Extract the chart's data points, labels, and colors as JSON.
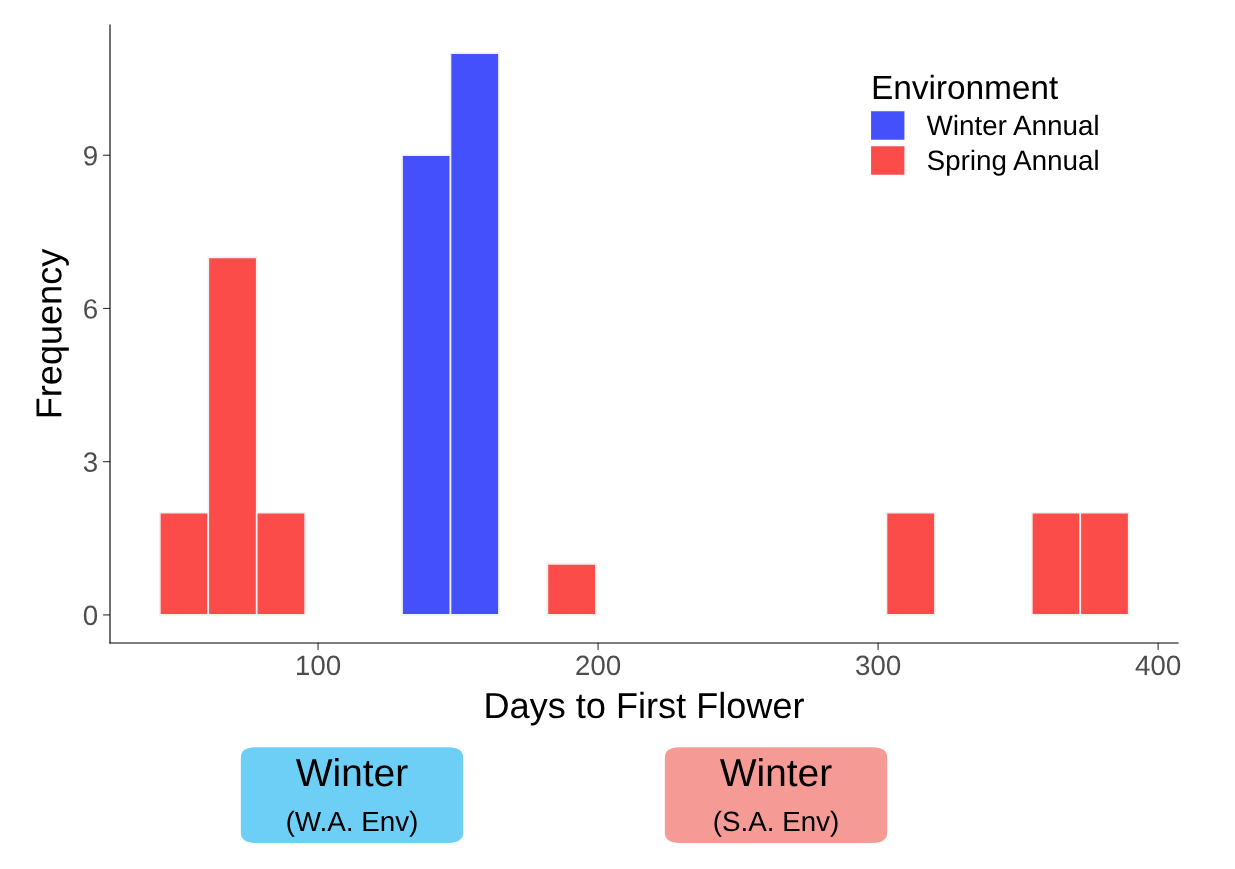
{
  "chart_data": {
    "type": "histogram",
    "xlabel": "Days to First Flower",
    "ylabel": "Frequency",
    "legend_title": "Environment",
    "bins": [
      43.5,
      60.8,
      78.1,
      95.4,
      112.7,
      130.0,
      147.3,
      164.6,
      181.9,
      199.2,
      216.5,
      233.8,
      251.1,
      268.4,
      285.7,
      303.0,
      320.3,
      337.6,
      354.9,
      372.2,
      389.5
    ],
    "series": [
      {
        "name": "Winter Annual",
        "color": "#4350fc",
        "values": [
          0,
          0,
          0,
          0,
          0,
          9,
          11,
          0,
          0,
          0,
          0,
          0,
          0,
          0,
          0,
          0,
          0,
          0,
          0,
          0
        ]
      },
      {
        "name": "Spring Annual",
        "color": "#fc4c4a",
        "values": [
          2,
          7,
          2,
          0,
          0,
          0,
          0,
          0,
          1,
          0,
          0,
          0,
          0,
          0,
          0,
          2,
          0,
          0,
          2,
          2
        ]
      }
    ],
    "xlim": [
      25.7,
      407.1
    ],
    "xticks": [
      100,
      200,
      300,
      400
    ],
    "ylim": [
      -0.55,
      11.55
    ],
    "yticks": [
      0,
      3,
      6,
      9
    ],
    "grid": false,
    "legend": "top right",
    "annotations": [
      "Winter\n(W.A. Env)",
      "Winter\n(S.A. Env)"
    ]
  }
}
